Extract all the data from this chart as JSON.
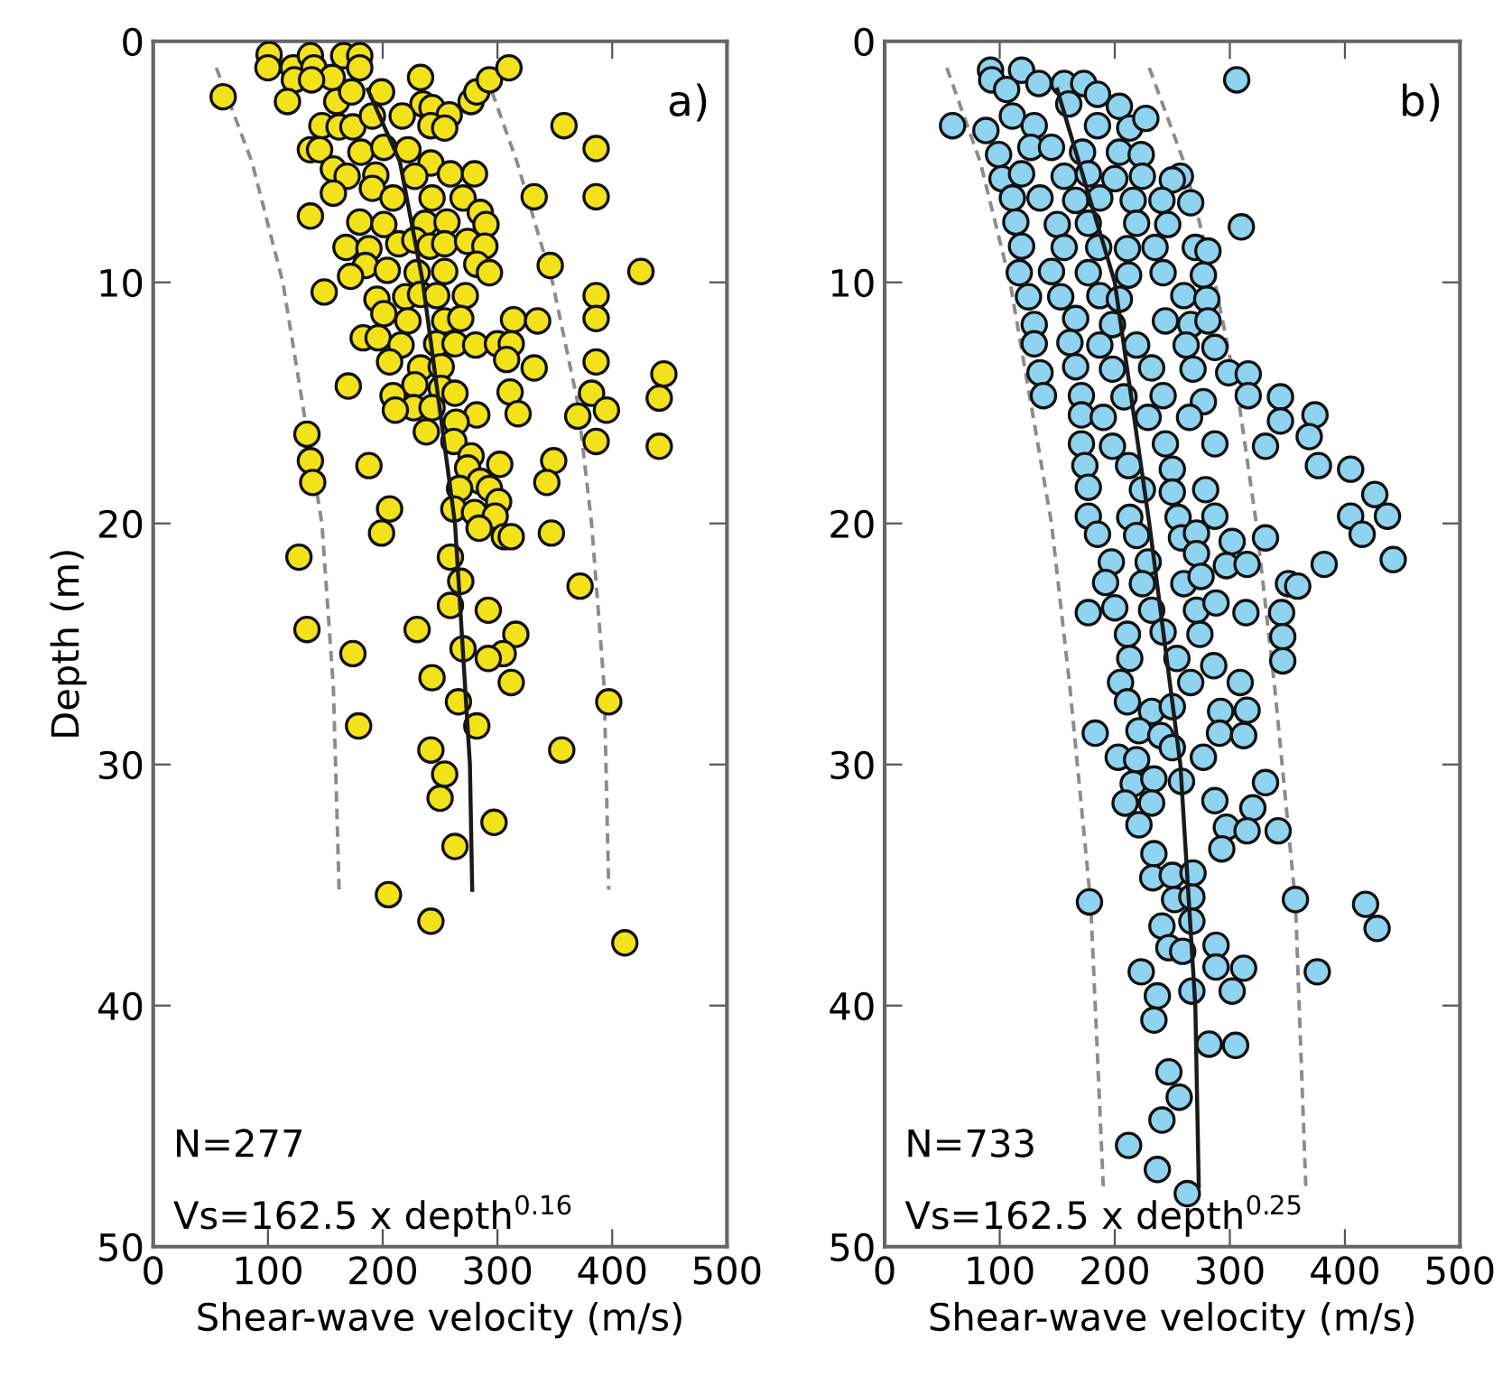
{
  "chart_data": [
    {
      "type": "scatter",
      "xlabel": "Shear-wave velocity (m/s)",
      "ylabel": "Depth (m)",
      "xlim": [
        0,
        500
      ],
      "ylim": [
        50,
        0
      ],
      "xticks": [
        0,
        100,
        200,
        300,
        400,
        500
      ],
      "yticks": [
        0,
        10,
        20,
        30,
        40,
        50
      ],
      "grid": false,
      "legend": false,
      "annotations": [
        "a)",
        "N=277",
        "Vs=162.5 x depth$^{0.16}$"
      ],
      "series": [
        {
          "marker": "circle",
          "color": "#f2e21a",
          "x": [
            101,
            100,
            122,
            137,
            140,
            166,
            180,
            180,
            156,
            123,
            138,
            61,
            117,
            160,
            173,
            199,
            233,
            235,
            243,
            258,
            277,
            282,
            293,
            310,
            147,
            162,
            174,
            191,
            217,
            242,
            254,
            358,
            386,
            137,
            145,
            181,
            201,
            222,
            242,
            157,
            169,
            194,
            228,
            259,
            280,
            157,
            191,
            209,
            243,
            270,
            332,
            386,
            137,
            180,
            201,
            237,
            256,
            285,
            290,
            168,
            188,
            214,
            228,
            241,
            254,
            274,
            289,
            185,
            172,
            204,
            230,
            254,
            282,
            293,
            346,
            425,
            149,
            195,
            220,
            233,
            247,
            272,
            386,
            201,
            222,
            254,
            268,
            314,
            335,
            386,
            183,
            196,
            216,
            247,
            263,
            281,
            300,
            312,
            308,
            206,
            233,
            251,
            332,
            386,
            445,
            170,
            228,
            251,
            263,
            209,
            227,
            211,
            243,
            311,
            318,
            382,
            395,
            441,
            370,
            282,
            264,
            238,
            262,
            134,
            386,
            441,
            137,
            188,
            277,
            274,
            302,
            349,
            139,
            285,
            267,
            293,
            343,
            301,
            262,
            206,
            280,
            298,
            284,
            199,
            306,
            312,
            347,
            127,
            259,
            268,
            372,
            259,
            292,
            134,
            230,
            316,
            270,
            174,
            305,
            292,
            243,
            312,
            266,
            397,
            179,
            282,
            242,
            356,
            254,
            250,
            297,
            263,
            205,
            242,
            411
          ],
          "values": [
            0.55,
            1.1,
            1.1,
            0.6,
            1.1,
            0.6,
            0.6,
            1.1,
            1.5,
            1.6,
            1.6,
            2.3,
            2.5,
            2.5,
            2.1,
            2.1,
            1.5,
            2.6,
            2.75,
            3.05,
            2.5,
            2.1,
            1.6,
            1.1,
            3.5,
            3.55,
            3.55,
            3.1,
            3.1,
            3.5,
            3.6,
            3.5,
            4.45,
            4.5,
            4.5,
            4.6,
            4.4,
            4.5,
            5.05,
            5.3,
            5.6,
            5.55,
            5.6,
            5.5,
            5.5,
            6.3,
            6.1,
            6.5,
            6.5,
            6.5,
            6.45,
            6.45,
            7.25,
            7.5,
            7.6,
            7.55,
            7.5,
            7.1,
            7.6,
            8.55,
            8.6,
            8.4,
            8.25,
            8.5,
            8.4,
            8.3,
            8.5,
            9.3,
            9.75,
            9.5,
            9.6,
            9.55,
            9.25,
            9.6,
            9.3,
            9.55,
            10.4,
            10.7,
            10.6,
            10.5,
            10.55,
            10.55,
            10.55,
            11.3,
            11.6,
            11.6,
            11.5,
            11.55,
            11.6,
            11.5,
            12.3,
            12.3,
            12.6,
            12.55,
            12.55,
            12.6,
            12.55,
            12.55,
            13.2,
            13.3,
            13.55,
            13.5,
            13.55,
            13.3,
            13.8,
            14.3,
            14.25,
            14.4,
            14.6,
            14.7,
            15.2,
            15.3,
            15.2,
            14.55,
            15.45,
            14.6,
            15.3,
            14.8,
            15.55,
            15.5,
            15.8,
            16.2,
            16.6,
            16.3,
            16.6,
            16.8,
            17.4,
            17.6,
            17.2,
            17.7,
            17.55,
            17.4,
            18.3,
            18.25,
            18.55,
            18.55,
            18.3,
            19.1,
            19.4,
            19.4,
            19.55,
            19.7,
            20.2,
            20.4,
            20.55,
            20.55,
            20.4,
            21.4,
            21.4,
            22.4,
            22.6,
            23.4,
            23.6,
            24.4,
            24.4,
            24.6,
            25.2,
            25.4,
            25.4,
            25.6,
            26.4,
            26.6,
            27.4,
            27.4,
            28.4,
            28.4,
            29.4,
            29.4,
            30.4,
            31.4,
            32.4,
            33.4,
            35.4,
            36.5,
            37.4
          ]
        },
        {
          "type": "line",
          "line_style": "solid",
          "color": "#1a1a1a",
          "x": [
            187,
            215,
            235,
            263,
            276,
            278
          ],
          "values": [
            2,
            5,
            10,
            20,
            30,
            35.2
          ]
        },
        {
          "type": "line",
          "line_style": "dashed",
          "color": "#8c8c8c",
          "x": [
            55,
            86,
            113,
            147,
            157,
            162
          ],
          "values": [
            1.1,
            5,
            10,
            20,
            26.8,
            35.2
          ]
        },
        {
          "type": "line",
          "line_style": "dashed",
          "color": "#8c8c8c",
          "x": [
            290,
            317,
            348,
            370,
            382,
            393,
            397
          ],
          "values": [
            1.4,
            5,
            10,
            15,
            20,
            26.8,
            35.2
          ]
        }
      ]
    },
    {
      "type": "scatter",
      "xlabel": "Shear-wave velocity (m/s)",
      "xlim": [
        0,
        500
      ],
      "ylim": [
        50,
        0
      ],
      "xticks": [
        0,
        100,
        200,
        300,
        400,
        500
      ],
      "yticks": [
        0,
        10,
        20,
        30,
        40,
        50
      ],
      "grid": false,
      "legend": false,
      "annotations": [
        "b)",
        "N=733",
        "Vs=162.5 x depth$^{0.25}$"
      ],
      "series": [
        {
          "marker": "circle",
          "color": "#8fd3ee",
          "x": [
            92,
            119,
            93,
            106,
            134,
            156,
            173,
            185,
            204,
            306,
            59,
            88,
            111,
            130,
            160,
            185,
            213,
            227,
            99,
            127,
            145,
            172,
            204,
            223,
            102,
            119,
            156,
            177,
            200,
            224,
            257,
            250,
            111,
            135,
            166,
            187,
            216,
            241,
            266,
            114,
            150,
            177,
            219,
            246,
            310,
            119,
            156,
            186,
            211,
            235,
            270,
            281,
            117,
            145,
            177,
            212,
            242,
            277,
            125,
            153,
            187,
            204,
            260,
            280,
            130,
            166,
            198,
            244,
            266,
            281,
            130,
            161,
            187,
            219,
            262,
            287,
            135,
            166,
            198,
            232,
            268,
            299,
            316,
            138,
            171,
            208,
            242,
            277,
            316,
            344,
            171,
            190,
            229,
            265,
            344,
            374,
            171,
            198,
            244,
            287,
            331,
            369,
            174,
            212,
            250,
            377,
            405,
            177,
            224,
            250,
            279,
            426,
            177,
            213,
            255,
            287,
            405,
            437,
            185,
            219,
            258,
            271,
            302,
            331,
            415,
            197,
            229,
            271,
            297,
            315,
            382,
            442,
            192,
            224,
            260,
            275,
            351,
            359,
            177,
            200,
            232,
            271,
            288,
            314,
            345,
            211,
            242,
            274,
            346,
            213,
            254,
            286,
            346,
            205,
            266,
            309,
            211,
            232,
            250,
            292,
            315,
            183,
            221,
            240,
            291,
            312,
            203,
            219,
            250,
            277,
            216,
            234,
            258,
            331,
            209,
            232,
            287,
            320,
            221,
            297,
            315,
            342,
            234,
            293,
            233,
            250,
            268,
            178,
            252,
            267,
            357,
            418,
            428,
            241,
            267,
            247,
            259,
            288,
            223,
            288,
            312,
            376,
            237,
            267,
            302,
            234,
            282,
            305,
            247,
            256,
            241,
            212,
            237,
            263
          ],
          "values": [
            1.2,
            1.2,
            1.6,
            2,
            1.75,
            1.75,
            1.75,
            2.2,
            2.7,
            1.6,
            3.5,
            3.7,
            3.1,
            3.5,
            2.6,
            3.5,
            3.6,
            3.2,
            4.7,
            4.4,
            4.4,
            4.6,
            4.6,
            4.7,
            5.7,
            5.5,
            5.6,
            5.5,
            5.7,
            5.6,
            5.6,
            5.75,
            6.5,
            6.5,
            6.6,
            6.5,
            6.6,
            6.6,
            6.7,
            7.5,
            7.6,
            7.55,
            7.55,
            7.6,
            7.7,
            8.5,
            8.55,
            8.55,
            8.6,
            8.55,
            8.55,
            8.7,
            9.6,
            9.55,
            9.6,
            9.7,
            9.6,
            9.7,
            10.6,
            10.6,
            10.55,
            10.7,
            10.55,
            10.7,
            11.75,
            11.5,
            11.75,
            11.6,
            11.75,
            11.6,
            12.55,
            12.5,
            12.6,
            12.6,
            12.6,
            12.7,
            13.75,
            13.5,
            13.6,
            13.55,
            13.6,
            13.75,
            13.8,
            14.7,
            14.7,
            14.75,
            14.7,
            14.95,
            14.7,
            14.75,
            15.5,
            15.6,
            15.6,
            15.6,
            15.75,
            15.5,
            16.7,
            16.8,
            16.7,
            16.7,
            16.8,
            16.4,
            17.6,
            17.6,
            17.75,
            17.6,
            17.75,
            18.5,
            18.6,
            18.7,
            18.6,
            18.8,
            19.7,
            19.75,
            19.75,
            19.7,
            19.7,
            19.7,
            20.45,
            20.5,
            20.6,
            20.4,
            20.75,
            20.6,
            20.45,
            21.6,
            21.6,
            21.25,
            21.75,
            21.7,
            21.7,
            21.5,
            22.45,
            22.5,
            22.5,
            22.2,
            22.5,
            22.6,
            23.7,
            23.5,
            23.6,
            23.6,
            23.3,
            23.7,
            23.7,
            24.6,
            24.5,
            24.6,
            24.7,
            25.6,
            25.6,
            25.9,
            25.7,
            26.6,
            26.6,
            26.6,
            27.4,
            27.8,
            27.6,
            27.8,
            27.75,
            28.7,
            28.6,
            28.8,
            28.7,
            28.8,
            29.7,
            29.8,
            29.3,
            29.7,
            30.8,
            30.6,
            30.7,
            30.75,
            31.6,
            31.6,
            31.5,
            31.8,
            32.5,
            32.6,
            32.75,
            32.75,
            33.7,
            33.5,
            34.7,
            34.6,
            34.5,
            35.7,
            35.6,
            35.5,
            35.6,
            35.8,
            36.8,
            36.7,
            36.5,
            37.6,
            37.75,
            37.5,
            38.6,
            38.4,
            38.45,
            38.6,
            39.6,
            39.4,
            39.4,
            40.6,
            41.6,
            41.65,
            42.75,
            43.8,
            44.75,
            45.8,
            46.8,
            47.8
          ]
        },
        {
          "type": "line",
          "line_style": "solid",
          "color": "#1a1a1a",
          "x": [
            150,
            200,
            230,
            257,
            270,
            273
          ],
          "values": [
            2,
            10,
            20,
            30,
            40,
            47.5
          ]
        },
        {
          "type": "line",
          "line_style": "dashed",
          "color": "#8c8c8c",
          "x": [
            54,
            83,
            109,
            145,
            161,
            179,
            190
          ],
          "values": [
            1.1,
            5,
            10,
            20,
            26.8,
            35.7,
            47.5
          ]
        },
        {
          "type": "line",
          "line_style": "dashed",
          "color": "#8c8c8c",
          "x": [
            230,
            260,
            287,
            308,
            323,
            339,
            357,
            366
          ],
          "values": [
            1.1,
            5,
            10,
            15,
            20,
            26.8,
            35.7,
            47.5
          ]
        }
      ]
    }
  ]
}
